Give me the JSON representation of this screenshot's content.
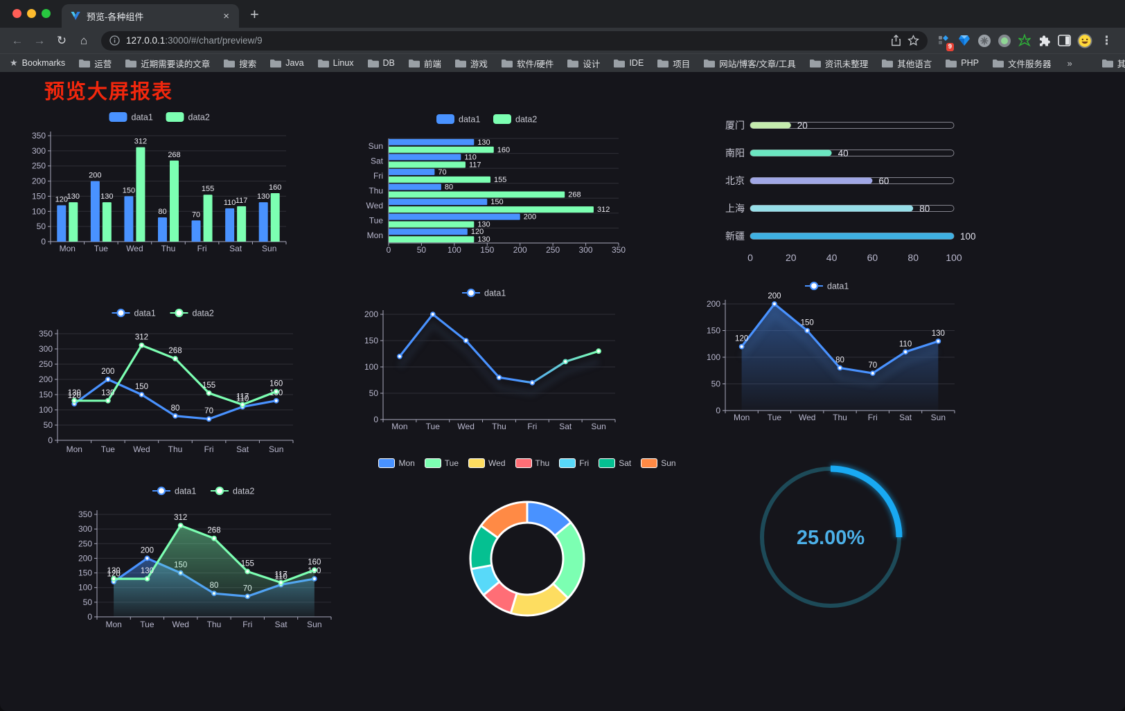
{
  "browser": {
    "traffic_lights": [
      "#ff5f57",
      "#febc2e",
      "#28c840"
    ],
    "tab": {
      "title": "预览-各种组件",
      "close": "×",
      "new_tab": "+"
    },
    "nav": {
      "back": "←",
      "forward": "→",
      "reload": "↻",
      "home": "⌂"
    },
    "address": {
      "host": "127.0.0.1",
      "rest": ":3000/#/chart/preview/9"
    },
    "actions": {
      "badge_count": "9",
      "menu": "⋮"
    },
    "bookmarks": {
      "bookmarks_label": "Bookmarks",
      "star_glyph": "★",
      "items": [
        "运营",
        "近期需要读的文章",
        "搜索",
        "Java",
        "Linux",
        "DB",
        "前端",
        "游戏",
        "软件/硬件",
        "设计",
        "IDE",
        "项目",
        "网站/博客/文章/工具",
        "资讯未整理",
        "其他语言",
        "PHP",
        "文件服务器"
      ],
      "overflow": "»",
      "other_label": "其他书签"
    }
  },
  "page": {
    "title": "预览大屏报表",
    "title_color": "#f1270d"
  },
  "theme": {
    "blue": "#4992ff",
    "green": "#7cffb2",
    "axis": "#a9a9bd",
    "grid": "rgba(185,184,206,0.16)",
    "tick_text": "#b9b8ce",
    "value_label": "#ecebf2",
    "legend_text": "#c8c9d3"
  },
  "chart_data": [
    {
      "id": "bar-grouped",
      "type": "bar",
      "categories": [
        "Mon",
        "Tue",
        "Wed",
        "Thu",
        "Fri",
        "Sat",
        "Sun"
      ],
      "series": [
        {
          "name": "data1",
          "color": "#4992ff",
          "values": [
            120,
            200,
            150,
            80,
            70,
            110,
            130
          ]
        },
        {
          "name": "data2",
          "color": "#7cffb2",
          "values": [
            130,
            130,
            312,
            268,
            155,
            117,
            160
          ]
        }
      ],
      "ylim": [
        0,
        350
      ],
      "ytick_step": 50,
      "legend_position": "top",
      "value_labels": true,
      "grid": true
    },
    {
      "id": "bar-horizontal",
      "type": "bar",
      "orientation": "horizontal",
      "categories_top_to_bottom": [
        "Sun",
        "Sat",
        "Fri",
        "Thu",
        "Wed",
        "Tue",
        "Mon"
      ],
      "series": [
        {
          "name": "data1",
          "color": "#4992ff",
          "values_top_to_bottom": [
            130,
            110,
            70,
            80,
            150,
            200,
            120
          ]
        },
        {
          "name": "data2",
          "color": "#7cffb2",
          "values_top_to_bottom": [
            160,
            117,
            155,
            268,
            312,
            130,
            130
          ]
        }
      ],
      "xlim": [
        0,
        350
      ],
      "xticks": [
        0,
        50,
        100,
        150,
        200,
        250,
        300,
        350
      ],
      "legend_position": "top",
      "value_labels": true
    },
    {
      "id": "progress-bars",
      "type": "bar",
      "orientation": "horizontal",
      "categories": [
        "厦门",
        "南阳",
        "北京",
        "上海",
        "新疆"
      ],
      "values": [
        20,
        40,
        60,
        80,
        100
      ],
      "colors": [
        "#c4ebad",
        "#6be6c1",
        "#a0a7e6",
        "#96dee8",
        "#3fb1e3"
      ],
      "xlim": [
        0,
        100
      ],
      "xticks": [
        0,
        20,
        40,
        60,
        80,
        100
      ],
      "value_labels": true
    },
    {
      "id": "line-dual",
      "type": "line",
      "categories": [
        "Mon",
        "Tue",
        "Wed",
        "Thu",
        "Fri",
        "Sat",
        "Sun"
      ],
      "series": [
        {
          "name": "data1",
          "color": "#4992ff",
          "values": [
            120,
            200,
            150,
            80,
            70,
            110,
            130
          ]
        },
        {
          "name": "data2",
          "color": "#7cffb2",
          "values": [
            130,
            130,
            312,
            268,
            155,
            117,
            160
          ]
        }
      ],
      "ylim": [
        0,
        350
      ],
      "ytick_step": 50,
      "legend_position": "top",
      "value_labels": true
    },
    {
      "id": "line-gradient",
      "type": "line",
      "categories": [
        "Mon",
        "Tue",
        "Wed",
        "Thu",
        "Fri",
        "Sat",
        "Sun"
      ],
      "series": [
        {
          "name": "data1",
          "gradient": [
            "#4992ff",
            "#7cffb2"
          ],
          "values": [
            120,
            200,
            150,
            80,
            70,
            110,
            130
          ]
        }
      ],
      "ylim": [
        0,
        200
      ],
      "ytick_step": 50,
      "legend_position": "top",
      "value_labels": false,
      "shadow": true
    },
    {
      "id": "area-single",
      "type": "area",
      "categories": [
        "Mon",
        "Tue",
        "Wed",
        "Thu",
        "Fri",
        "Sat",
        "Sun"
      ],
      "series": [
        {
          "name": "data1",
          "color": "#4992ff",
          "values": [
            120,
            200,
            150,
            80,
            70,
            110,
            130
          ]
        }
      ],
      "ylim": [
        0,
        200
      ],
      "ytick_step": 50,
      "legend_position": "top",
      "value_labels": true,
      "shadow": true
    },
    {
      "id": "area-dual",
      "type": "area",
      "categories": [
        "Mon",
        "Tue",
        "Wed",
        "Thu",
        "Fri",
        "Sat",
        "Sun"
      ],
      "series": [
        {
          "name": "data1",
          "color": "#4992ff",
          "values": [
            120,
            200,
            150,
            80,
            70,
            110,
            130
          ]
        },
        {
          "name": "data2",
          "color": "#7cffb2",
          "values": [
            130,
            130,
            312,
            268,
            155,
            117,
            160
          ]
        }
      ],
      "ylim": [
        0,
        350
      ],
      "ytick_step": 50,
      "legend_position": "top",
      "value_labels": true
    },
    {
      "id": "donut",
      "type": "pie",
      "categories": [
        "Mon",
        "Tue",
        "Wed",
        "Thu",
        "Fri",
        "Sat",
        "Sun"
      ],
      "values": [
        120,
        200,
        150,
        80,
        70,
        110,
        130
      ],
      "colors": [
        "#4992ff",
        "#7cffb2",
        "#fddd60",
        "#ff6e76",
        "#58d9f9",
        "#05c091",
        "#ff8a45"
      ],
      "legend_position": "top",
      "border_color": "#ffffff"
    },
    {
      "id": "gauge",
      "type": "gauge",
      "value": 25,
      "max": 100,
      "display": "25.00%",
      "arc_color": "#19a9f2",
      "track_color": "#1d4a58",
      "text_color": "#4cb0e8"
    }
  ]
}
